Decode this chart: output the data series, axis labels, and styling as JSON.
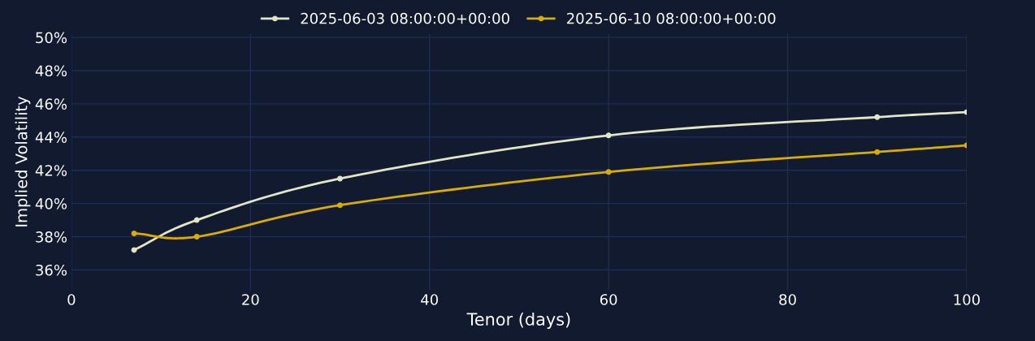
{
  "chart_data": {
    "type": "line",
    "xlabel": "Tenor (days)",
    "ylabel": "Implied Volatility",
    "x": [
      7,
      14,
      30,
      60,
      90,
      100
    ],
    "series": [
      {
        "name": "2025-06-03 08:00:00+00:00",
        "color": "#e3e6c3",
        "values": [
          37.2,
          39.0,
          41.5,
          44.1,
          45.2,
          45.5
        ]
      },
      {
        "name": "2025-06-10 08:00:00+00:00",
        "color": "#d9ad00",
        "values": [
          38.2,
          38.0,
          39.9,
          41.9,
          43.1,
          43.5
        ]
      }
    ],
    "xlim": [
      0,
      100
    ],
    "xticks": [
      0,
      20,
      40,
      60,
      80,
      100
    ],
    "ylim": [
      34.8,
      50.2
    ],
    "yticks": [
      {
        "value": 36,
        "label": "36%"
      },
      {
        "value": 38,
        "label": "38%"
      },
      {
        "value": 40,
        "label": "40%"
      },
      {
        "value": 42,
        "label": "42%"
      },
      {
        "value": 44,
        "label": "44%"
      },
      {
        "value": 46,
        "label": "46%"
      },
      {
        "value": 48,
        "label": "48%"
      },
      {
        "value": 50,
        "label": "50%"
      }
    ],
    "grid": true,
    "legend": "top",
    "marker": "circle",
    "line_style": "solid"
  }
}
